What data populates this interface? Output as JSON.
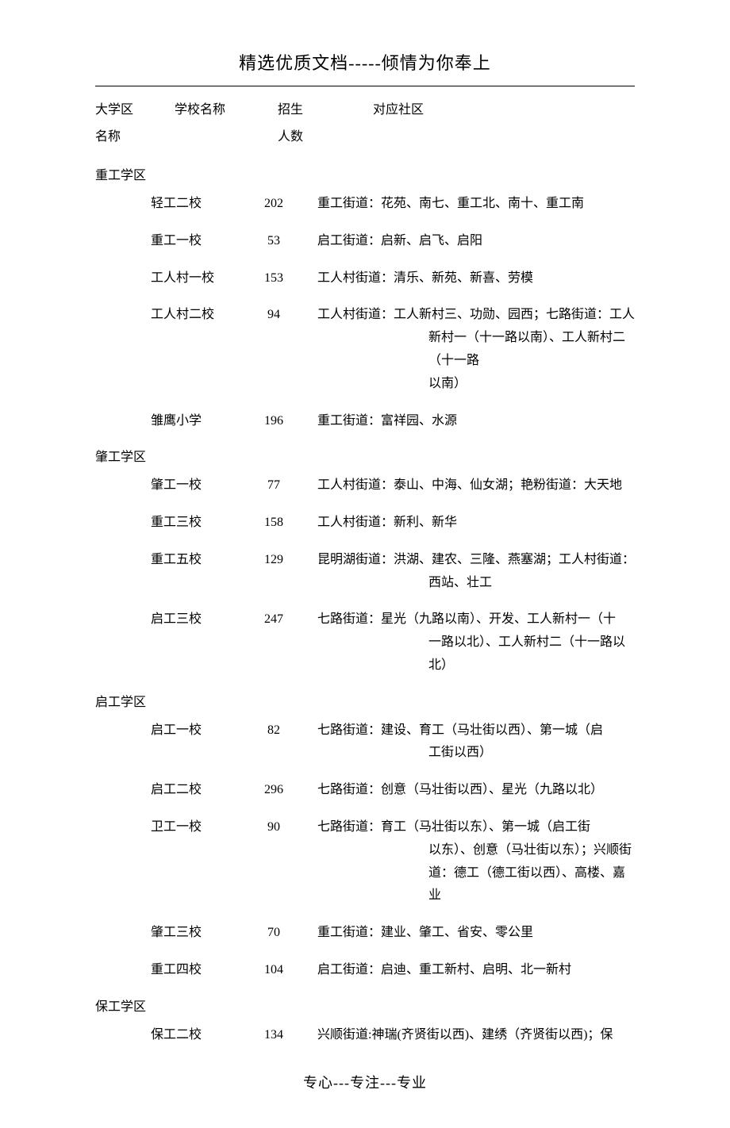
{
  "header": {
    "title": "精选优质文档-----倾情为你奉上"
  },
  "columns": {
    "district_line1": "大学区",
    "district_line2": "名称",
    "school": "学校名称",
    "count_line1": "招生",
    "count_line2": "人数",
    "area": "对应社区"
  },
  "districts": [
    {
      "name": "重工学区",
      "schools": [
        {
          "name": "轻工二校",
          "count": "202",
          "area": "重工街道：花苑、南七、重工北、南十、重工南",
          "cont": []
        },
        {
          "name": "重工一校",
          "count": "53",
          "area": "启工街道：启新、启飞、启阳",
          "cont": []
        },
        {
          "name": "工人村一校",
          "count": "153",
          "area": "工人村街道：清乐、新苑、新喜、劳模",
          "cont": []
        },
        {
          "name": "工人村二校",
          "count": "94",
          "area": "工人村街道：工人新村三、功勋、园西；七路街道：工人",
          "cont": [
            "新村一（十一路以南）、工人新村二（十一路",
            "以南）"
          ]
        },
        {
          "name": "雏鹰小学",
          "count": "196",
          "area": "重工街道：富祥园、水源",
          "cont": []
        }
      ]
    },
    {
      "name": "肇工学区",
      "schools": [
        {
          "name": "肇工一校",
          "count": "77",
          "area": "工人村街道：泰山、中海、仙女湖；艳粉街道：大天地",
          "cont": []
        },
        {
          "name": "重工三校",
          "count": "158",
          "area": "工人村街道：新利、新华",
          "cont": []
        },
        {
          "name": "重工五校",
          "count": "129",
          "area": "昆明湖街道：洪湖、建农、三隆、燕塞湖；工人村街道：",
          "cont": [
            "西站、壮工"
          ]
        },
        {
          "name": "启工三校",
          "count": "247",
          "area": "七路街道：星光（九路以南）、开发、工人新村一（十",
          "cont": [
            "一路以北）、工人新村二（十一路以北）"
          ]
        }
      ]
    },
    {
      "name": "启工学区",
      "schools": [
        {
          "name": "启工一校",
          "count": "82",
          "area": "七路街道：建设、育工（马壮街以西）、第一城（启",
          "cont": [
            "工街以西）"
          ]
        },
        {
          "name": "启工二校",
          "count": "296",
          "area": "七路街道：创意（马壮街以西）、星光（九路以北）",
          "cont": []
        },
        {
          "name": "卫工一校",
          "count": "90",
          "area": "七路街道：育工（马壮街以东）、第一城（启工街",
          "cont": [
            "以东）、创意（马壮街以东）；兴顺街",
            "道：德工（德工街以西）、高楼、嘉业"
          ]
        },
        {
          "name": "肇工三校",
          "count": "70",
          "area": "重工街道：建业、肇工、省安、零公里",
          "cont": []
        },
        {
          "name": "重工四校",
          "count": "104",
          "area": "启工街道：启迪、重工新村、启明、北一新村",
          "cont": []
        }
      ]
    },
    {
      "name": "保工学区",
      "schools": [
        {
          "name": "保工二校",
          "count": "134",
          "area": "兴顺街道:神瑞(齐贤街以西)、建绣（齐贤街以西)；保",
          "cont": []
        }
      ]
    }
  ],
  "footer": {
    "title": "专心---专注---专业"
  }
}
